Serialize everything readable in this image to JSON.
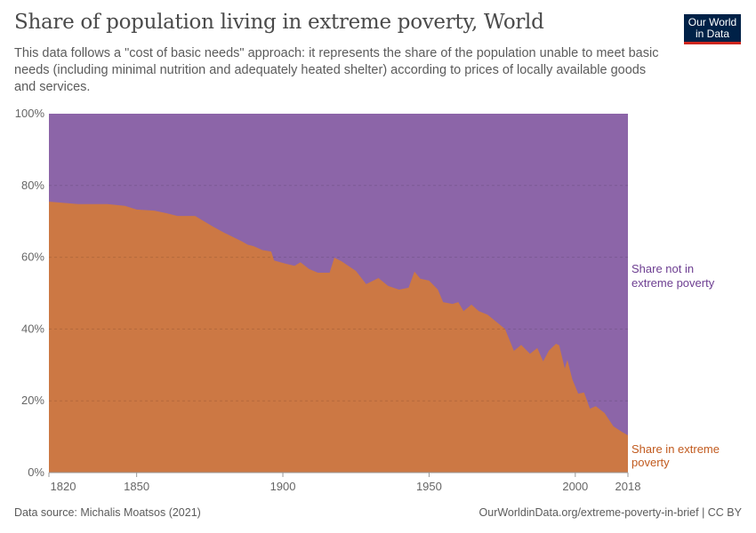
{
  "header": {
    "title": "Share of population living in extreme poverty, World",
    "subtitle": "This data follows a \"cost of basic needs\" approach: it represents the share of the population unable to meet basic needs (including minimal nutrition and adequately heated shelter) according to prices of locally available goods and services.",
    "logo": "Our World in Data"
  },
  "footer": {
    "source_label": "Data source:",
    "source": "Michalis Moatsos (2021)",
    "url": "OurWorldinData.org/extreme-poverty-in-brief | CC BY"
  },
  "colors": {
    "poverty": "#cc7844",
    "not_poverty": "#8c65a8"
  },
  "chart_data": {
    "type": "area",
    "stacked": true,
    "xlim": [
      1820,
      2018
    ],
    "ylim": [
      0,
      100
    ],
    "x_ticks": [
      "1820",
      "1850",
      "1900",
      "1950",
      "2000",
      "2018"
    ],
    "y_ticks": [
      "0%",
      "20%",
      "40%",
      "60%",
      "80%",
      "100%"
    ],
    "grid": "horizontal dashed",
    "series": [
      {
        "name": "Share in extreme poverty",
        "color": "#cc7844",
        "points": [
          [
            1820,
            75.5
          ],
          [
            1830,
            74.8
          ],
          [
            1840,
            74.8
          ],
          [
            1846,
            74.3
          ],
          [
            1850,
            73.3
          ],
          [
            1856,
            73
          ],
          [
            1860,
            72.3
          ],
          [
            1864,
            71.5
          ],
          [
            1870,
            71.5
          ],
          [
            1876,
            68.6
          ],
          [
            1880,
            66.8
          ],
          [
            1886,
            64.4
          ],
          [
            1888,
            63.5
          ],
          [
            1890,
            63.1
          ],
          [
            1893,
            62
          ],
          [
            1896,
            61.6
          ],
          [
            1897,
            59.1
          ],
          [
            1901,
            58.2
          ],
          [
            1904,
            57.6
          ],
          [
            1906,
            58.6
          ],
          [
            1909,
            56.7
          ],
          [
            1912,
            55.7
          ],
          [
            1916,
            55.7
          ],
          [
            1917.6,
            59.9
          ],
          [
            1920,
            58.9
          ],
          [
            1925,
            56.2
          ],
          [
            1928.5,
            52.5
          ],
          [
            1932.7,
            54.2
          ],
          [
            1936,
            52
          ],
          [
            1939.7,
            51
          ],
          [
            1943,
            51.5
          ],
          [
            1945,
            56
          ],
          [
            1947,
            54
          ],
          [
            1950,
            53.5
          ],
          [
            1953,
            51
          ],
          [
            1954.8,
            47.5
          ],
          [
            1958,
            47
          ],
          [
            1960,
            47.5
          ],
          [
            1961.8,
            45
          ],
          [
            1964.5,
            46.8
          ],
          [
            1967,
            45
          ],
          [
            1970,
            44
          ],
          [
            1973,
            42
          ],
          [
            1976,
            40
          ],
          [
            1979,
            33.9
          ],
          [
            1981.5,
            35.6
          ],
          [
            1984.5,
            33.1
          ],
          [
            1987,
            34.7
          ],
          [
            1989,
            31
          ],
          [
            1991,
            34
          ],
          [
            1993.4,
            35.9
          ],
          [
            1994.5,
            35.5
          ],
          [
            1996.4,
            29
          ],
          [
            1997.3,
            31.4
          ],
          [
            1999,
            26
          ],
          [
            2001,
            22
          ],
          [
            2003,
            22.3
          ],
          [
            2005,
            17.8
          ],
          [
            2007,
            18.5
          ],
          [
            2010,
            16.6
          ],
          [
            2013,
            12.9
          ],
          [
            2016,
            11.3
          ],
          [
            2018,
            10.4
          ]
        ]
      },
      {
        "name": "Share not in extreme poverty",
        "color": "#8c65a8",
        "note_fill_to": 100
      }
    ],
    "labels": [
      {
        "text": "Share not in extreme poverty",
        "lines": [
          "Share not in",
          "extreme poverty"
        ]
      },
      {
        "text": "Share in extreme poverty",
        "lines": [
          "Share in extreme",
          "poverty"
        ]
      }
    ]
  }
}
